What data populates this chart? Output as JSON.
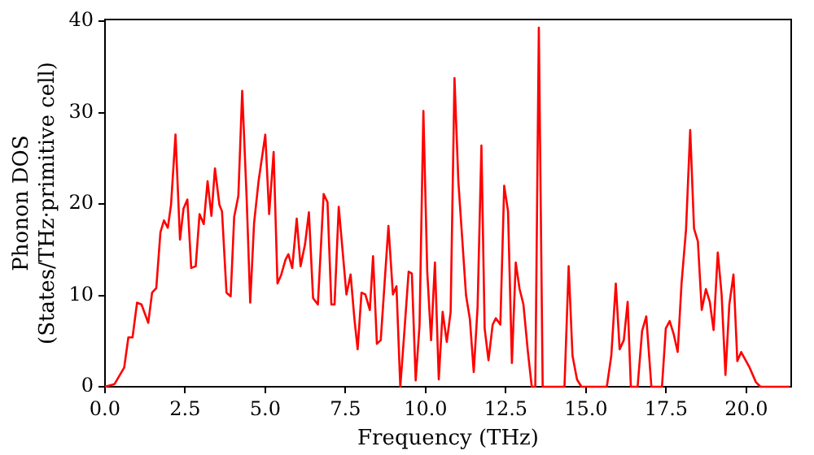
{
  "chart_data": {
    "type": "line",
    "xlabel": "Frequency (THz)",
    "ylabel": "Phonon DOS\n(States/THz·primitive cell)",
    "x": [
      0,
      0.3,
      0.6,
      0.73,
      0.86,
      1.0,
      1.14,
      1.35,
      1.47,
      1.6,
      1.73,
      1.84,
      1.96,
      2.06,
      2.2,
      2.34,
      2.45,
      2.57,
      2.69,
      2.83,
      2.95,
      3.08,
      3.2,
      3.32,
      3.43,
      3.57,
      3.65,
      3.79,
      3.92,
      4.03,
      4.16,
      4.28,
      4.42,
      4.53,
      4.65,
      4.79,
      5.0,
      5.12,
      5.26,
      5.38,
      5.5,
      5.63,
      5.72,
      5.84,
      5.98,
      6.1,
      6.24,
      6.36,
      6.49,
      6.64,
      6.82,
      6.94,
      7.06,
      7.16,
      7.29,
      7.53,
      7.66,
      7.78,
      7.88,
      8.0,
      8.12,
      8.26,
      8.36,
      8.48,
      8.6,
      8.84,
      8.98,
      9.09,
      9.21,
      9.33,
      9.47,
      9.57,
      9.69,
      9.81,
      9.93,
      10.05,
      10.17,
      10.29,
      10.41,
      10.53,
      10.66,
      10.78,
      10.9,
      11.02,
      11.26,
      11.38,
      11.5,
      11.62,
      11.74,
      11.84,
      11.96,
      12.09,
      12.19,
      12.33,
      12.45,
      12.57,
      12.69,
      12.81,
      12.93,
      13.05,
      13.19,
      13.31,
      13.42,
      13.53,
      13.65,
      13.72,
      14.33,
      14.46,
      14.58,
      14.72,
      14.86,
      15.65,
      15.79,
      15.93,
      16.05,
      16.18,
      16.3,
      16.4,
      16.61,
      16.75,
      16.88,
      17.04,
      17.37,
      17.49,
      17.61,
      17.74,
      17.86,
      17.98,
      18.12,
      18.25,
      18.37,
      18.49,
      18.61,
      18.74,
      18.86,
      18.98,
      19.11,
      19.23,
      19.35,
      19.47,
      19.6,
      19.72,
      19.84,
      20.09,
      20.3,
      20.44,
      21.35
    ],
    "series": [
      {
        "color": "#ff0000",
        "values": [
          0,
          0.3,
          2.1,
          5.4,
          5.4,
          9.2,
          9.0,
          7.0,
          10.3,
          10.8,
          16.9,
          18.2,
          17.4,
          19.9,
          27.6,
          16.1,
          19.5,
          20.5,
          13.0,
          13.2,
          18.9,
          17.8,
          22.5,
          18.7,
          23.9,
          19.9,
          19.2,
          10.3,
          9.9,
          18.6,
          20.9,
          32.4,
          20.5,
          9.2,
          17.9,
          22.5,
          27.6,
          18.9,
          25.7,
          11.3,
          12.3,
          13.9,
          14.5,
          13.0,
          18.4,
          13.2,
          15.6,
          19.1,
          9.7,
          9.0,
          21.1,
          20.2,
          9.0,
          9.0,
          19.7,
          10.1,
          12.3,
          7.4,
          4.1,
          10.3,
          10.1,
          8.4,
          14.3,
          4.7,
          5.1,
          17.6,
          10.1,
          11.0,
          0,
          5.7,
          12.6,
          12.4,
          0.7,
          6.7,
          30.2,
          12.6,
          5.1,
          13.6,
          0.8,
          8.2,
          4.9,
          8.2,
          33.8,
          22.5,
          10.0,
          7.4,
          1.6,
          8.7,
          26.4,
          6.4,
          2.9,
          6.8,
          7.5,
          6.8,
          22.0,
          19.2,
          2.6,
          13.6,
          10.7,
          9.0,
          3.8,
          0,
          0,
          39.3,
          0,
          0,
          0,
          13.2,
          3.4,
          0.8,
          0,
          0,
          3.4,
          11.3,
          4.1,
          5.1,
          9.3,
          0,
          0,
          6.1,
          7.7,
          0,
          0,
          6.4,
          7.2,
          5.7,
          3.8,
          11.3,
          17.2,
          28.1,
          17.3,
          15.9,
          8.4,
          10.7,
          9.3,
          6.2,
          14.7,
          10.1,
          1.3,
          9.0,
          12.3,
          2.8,
          3.8,
          2.2,
          0.5,
          0,
          0
        ]
      }
    ],
    "xlim": [
      0,
      21.4
    ],
    "xticks": [
      {
        "value": 0,
        "label": "0.0"
      },
      {
        "value": 2.5,
        "label": "2.5"
      },
      {
        "value": 5,
        "label": "5.0"
      },
      {
        "value": 7.5,
        "label": "7.5"
      },
      {
        "value": 10,
        "label": "10.0"
      },
      {
        "value": 12.5,
        "label": "12.5"
      },
      {
        "value": 15,
        "label": "15.0"
      },
      {
        "value": 17.5,
        "label": "17.5"
      },
      {
        "value": 20,
        "label": "20.0"
      }
    ],
    "ylim": [
      0,
      40.2
    ],
    "yticks": [
      0,
      10,
      20,
      30,
      40
    ],
    "grid": false,
    "legend": false,
    "marker": "none",
    "line_style": "solid"
  }
}
